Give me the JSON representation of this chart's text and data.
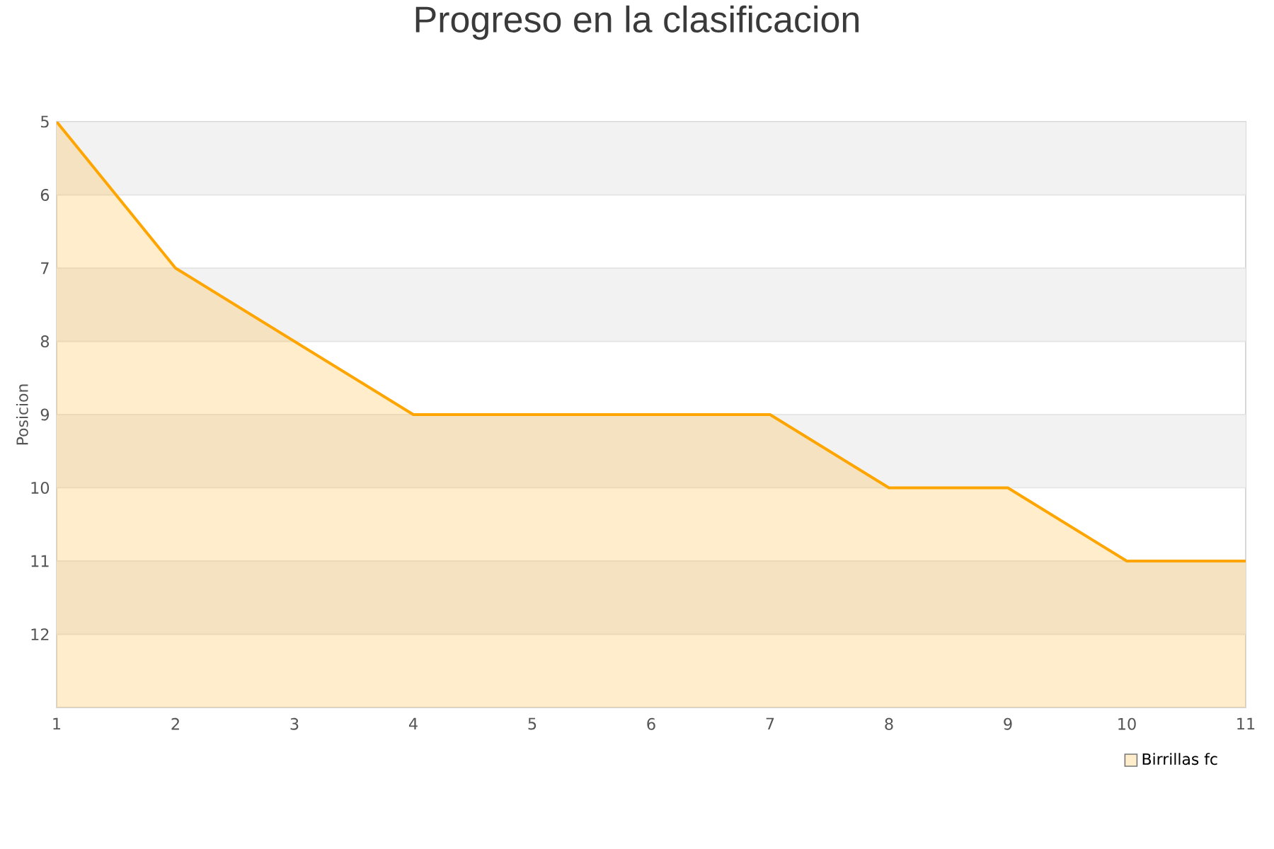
{
  "chart_data": {
    "type": "area",
    "title": "Progreso en la clasificacion",
    "ylabel": "Posicion",
    "x": [
      1,
      2,
      3,
      4,
      5,
      6,
      7,
      8,
      9,
      10,
      11
    ],
    "series": [
      {
        "name": "Birrillas fc",
        "color": "#ffa500",
        "values": [
          5,
          7,
          8,
          9,
          9,
          9,
          9,
          10,
          10,
          11,
          11
        ]
      }
    ],
    "xlim": [
      1,
      11
    ],
    "xticks": [
      1,
      2,
      3,
      4,
      5,
      6,
      7,
      8,
      9,
      10,
      11
    ],
    "ylim": [
      13,
      5
    ],
    "yticks": [
      5,
      6,
      7,
      8,
      9,
      10,
      11,
      12
    ],
    "bands": [
      {
        "axis": "y",
        "from": 5,
        "to": 6,
        "color": "#f2f2f2"
      },
      {
        "axis": "y",
        "from": 7,
        "to": 8,
        "color": "#f2f2f2"
      },
      {
        "axis": "y",
        "from": 9,
        "to": 10,
        "color": "#f2f2f2"
      },
      {
        "axis": "y",
        "from": 11,
        "to": 12,
        "color": "#f2f2f2"
      }
    ],
    "grid": "y",
    "legend": "bottom right"
  }
}
